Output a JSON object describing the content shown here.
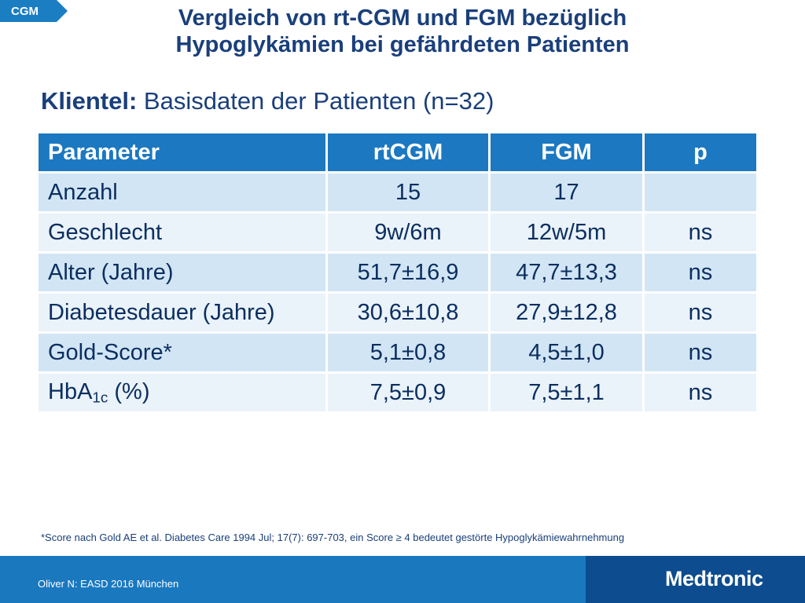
{
  "tag": "CGM",
  "title": {
    "line1": "Vergleich von rt-CGM und FGM bezüglich",
    "line2": "Hypoglykämien bei gefährdeten Patienten"
  },
  "subtitle": {
    "label": "Klientel:",
    "text": "Basisdaten der Patienten (n=32)"
  },
  "table": {
    "headers": [
      "Parameter",
      "rtCGM",
      "FGM",
      "p"
    ],
    "rows": [
      {
        "param": "Anzahl",
        "rtcgm": "15",
        "fgm": "17",
        "p": ""
      },
      {
        "param": "Geschlecht",
        "rtcgm": "9w/6m",
        "fgm": "12w/5m",
        "p": "ns"
      },
      {
        "param": "Alter (Jahre)",
        "rtcgm": "51,7±16,9",
        "fgm": "47,7±13,3",
        "p": "ns"
      },
      {
        "param": "Diabetesdauer (Jahre)",
        "rtcgm": "30,6±10,8",
        "fgm": "27,9±12,8",
        "p": "ns"
      },
      {
        "param": "Gold-Score*",
        "rtcgm": "5,1±0,8",
        "fgm": "4,5±1,0",
        "p": "ns"
      },
      {
        "param_main": "HbA",
        "param_sub": "1c",
        "param_rest": " (%)",
        "rtcgm": "7,5±0,9",
        "fgm": "7,5±1,1",
        "p": "ns"
      }
    ]
  },
  "footnote": "*Score nach Gold AE et al. Diabetes Care 1994 Jul; 17(7): 697-703, ein Score ≥ 4 bedeutet gestörte Hypoglykämiewahrnehmung",
  "footer": {
    "source": "Oliver N: EASD 2016 München",
    "logo": "Medtronic"
  },
  "colors": {
    "title": "#1a3f7a",
    "header_bg": "#1c78c0",
    "row_dark": "#d2e5f5",
    "row_light": "#eaf2fa",
    "footer_bg": "#1a78bf",
    "footer_dark": "#0d4c8e"
  }
}
